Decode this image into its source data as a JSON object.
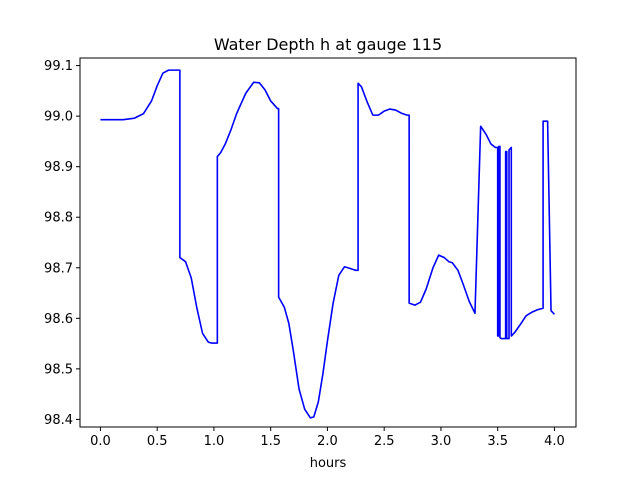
{
  "chart_data": {
    "type": "line",
    "title": "Water Depth h at gauge 115",
    "xlabel": "hours",
    "ylabel": "",
    "xlim": [
      -0.18,
      4.19
    ],
    "ylim": [
      98.385,
      99.115
    ],
    "xticks": [
      0.0,
      0.5,
      1.0,
      1.5,
      2.0,
      2.5,
      3.0,
      3.5,
      4.0
    ],
    "xtick_labels": [
      "0.0",
      "0.5",
      "1.0",
      "1.5",
      "2.0",
      "2.5",
      "3.0",
      "3.5",
      "4.0"
    ],
    "yticks": [
      98.4,
      98.5,
      98.6,
      98.7,
      98.8,
      98.9,
      99.0,
      99.1
    ],
    "ytick_labels": [
      "98.4",
      "98.5",
      "98.6",
      "98.7",
      "98.8",
      "98.9",
      "99.0",
      "99.1"
    ],
    "grid": false,
    "line_color": "#0000ff",
    "series": [
      {
        "x": [
          0.0,
          0.1,
          0.2,
          0.3,
          0.38,
          0.45,
          0.5,
          0.55,
          0.6,
          0.65,
          0.7,
          0.7,
          0.75,
          0.8,
          0.85,
          0.9,
          0.95,
          0.98,
          1.02,
          1.03,
          1.03,
          1.06,
          1.1,
          1.15,
          1.2,
          1.28,
          1.35,
          1.4,
          1.45,
          1.5,
          1.56,
          1.57,
          1.57,
          1.62,
          1.66,
          1.7,
          1.75,
          1.8,
          1.85,
          1.88,
          1.92,
          1.96,
          2.0,
          2.05,
          2.1,
          2.15,
          2.18,
          2.22,
          2.25,
          2.27,
          2.27,
          2.3,
          2.35,
          2.4,
          2.45,
          2.5,
          2.55,
          2.6,
          2.65,
          2.7,
          2.72,
          2.72,
          2.77,
          2.82,
          2.87,
          2.93,
          2.98,
          3.03,
          3.07,
          3.1,
          3.15,
          3.2,
          3.25,
          3.3,
          3.35,
          3.35,
          3.4,
          3.44,
          3.48,
          3.5,
          3.5,
          3.51,
          3.51,
          3.52,
          3.52,
          3.53,
          3.57,
          3.57,
          3.58,
          3.58,
          3.6,
          3.6,
          3.62,
          3.62,
          3.65,
          3.7,
          3.75,
          3.8,
          3.85,
          3.9,
          3.9,
          3.94,
          3.94,
          3.97,
          4.0
        ],
        "y": [
          98.993,
          98.993,
          98.993,
          98.996,
          99.005,
          99.03,
          99.06,
          99.085,
          99.091,
          99.091,
          99.091,
          98.72,
          98.712,
          98.68,
          98.62,
          98.57,
          98.553,
          98.551,
          98.551,
          98.551,
          98.92,
          98.928,
          98.945,
          98.973,
          99.005,
          99.045,
          99.067,
          99.066,
          99.052,
          99.03,
          99.015,
          99.015,
          98.642,
          98.622,
          98.59,
          98.535,
          98.46,
          98.42,
          98.403,
          98.405,
          98.435,
          98.49,
          98.555,
          98.63,
          98.685,
          98.702,
          98.7,
          98.697,
          98.695,
          98.695,
          99.065,
          99.058,
          99.028,
          99.002,
          99.002,
          99.01,
          99.014,
          99.012,
          99.006,
          99.002,
          99.002,
          98.63,
          98.626,
          98.632,
          98.658,
          98.7,
          98.725,
          98.72,
          98.712,
          98.71,
          98.695,
          98.665,
          98.633,
          98.61,
          98.98,
          98.98,
          98.963,
          98.945,
          98.938,
          98.938,
          98.565,
          98.565,
          98.94,
          98.94,
          98.562,
          98.56,
          98.56,
          98.93,
          98.93,
          98.56,
          98.56,
          98.933,
          98.938,
          98.565,
          98.572,
          98.588,
          98.605,
          98.612,
          98.617,
          98.62,
          98.99,
          98.99,
          98.988,
          98.615,
          98.608
        ]
      }
    ]
  }
}
